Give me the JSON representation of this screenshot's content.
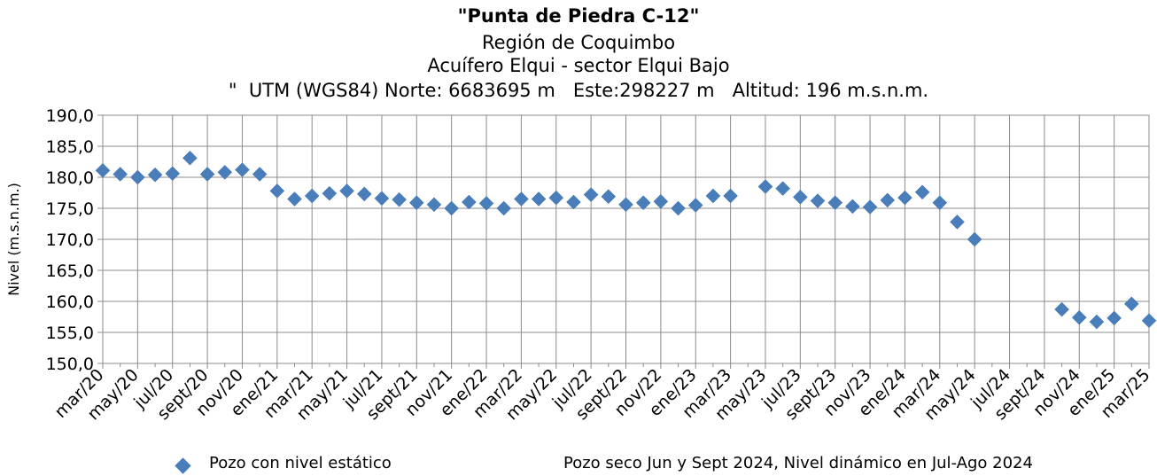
{
  "titles": {
    "line1": "\"Punta de Piedra C-12\"",
    "line2": "Región de Coquimbo",
    "line3": "Acuífero Elqui - sector Elqui Bajo",
    "line4": "\"  UTM (WGS84) Norte: 6683695 m   Este:298227 m   Altitud: 196 m.s.n.m."
  },
  "legend": {
    "label": "Pozo con nivel estático",
    "marker_color": "#4a7ebb"
  },
  "note": "Pozo seco Jun y Sept 2024, Nivel dinámico en Jul-Ago 2024",
  "chart_data": {
    "type": "scatter",
    "ylabel": "Nivel (m.s.n.m.)",
    "ylim": [
      150,
      190
    ],
    "yticks": [
      "150,0",
      "155,0",
      "160,0",
      "165,0",
      "170,0",
      "175,0",
      "180,0",
      "185,0",
      "190,0"
    ],
    "xticks": [
      "mar/20",
      "may/20",
      "jul/20",
      "sept/20",
      "nov/20",
      "ene/21",
      "mar/21",
      "may/21",
      "jul/21",
      "sept/21",
      "nov/21",
      "ene/22",
      "mar/22",
      "may/22",
      "jul/22",
      "sept/22",
      "nov/22",
      "ene/23",
      "mar/23",
      "may/23",
      "jul/23",
      "sept/23",
      "nov/23",
      "ene/24",
      "mar/24",
      "may/24",
      "jul/24",
      "sept/24",
      "nov/24",
      "ene/25",
      "mar/25"
    ],
    "x_range": [
      "2020-03",
      "2025-03"
    ],
    "grid": true,
    "color": "#4a7ebb",
    "series": [
      {
        "name": "Pozo con nivel estático",
        "points": [
          [
            "2020-03",
            181.1
          ],
          [
            "2020-04",
            180.5
          ],
          [
            "2020-05",
            180.0
          ],
          [
            "2020-06",
            180.4
          ],
          [
            "2020-07",
            180.6
          ],
          [
            "2020-08",
            183.1
          ],
          [
            "2020-09",
            180.5
          ],
          [
            "2020-10",
            180.8
          ],
          [
            "2020-11",
            181.2
          ],
          [
            "2020-12",
            180.5
          ],
          [
            "2021-01",
            177.8
          ],
          [
            "2021-02",
            176.5
          ],
          [
            "2021-03",
            177.0
          ],
          [
            "2021-04",
            177.4
          ],
          [
            "2021-05",
            177.8
          ],
          [
            "2021-06",
            177.3
          ],
          [
            "2021-07",
            176.6
          ],
          [
            "2021-08",
            176.4
          ],
          [
            "2021-09",
            175.9
          ],
          [
            "2021-10",
            175.6
          ],
          [
            "2021-11",
            175.0
          ],
          [
            "2021-12",
            176.0
          ],
          [
            "2022-01",
            175.8
          ],
          [
            "2022-02",
            175.0
          ],
          [
            "2022-03",
            176.5
          ],
          [
            "2022-04",
            176.5
          ],
          [
            "2022-05",
            176.7
          ],
          [
            "2022-06",
            176.0
          ],
          [
            "2022-07",
            177.2
          ],
          [
            "2022-08",
            176.9
          ],
          [
            "2022-09",
            175.6
          ],
          [
            "2022-10",
            175.9
          ],
          [
            "2022-11",
            176.1
          ],
          [
            "2022-12",
            175.0
          ],
          [
            "2023-01",
            175.5
          ],
          [
            "2023-02",
            177.0
          ],
          [
            "2023-03",
            177.0
          ],
          [
            "2023-05",
            178.5
          ],
          [
            "2023-06",
            178.2
          ],
          [
            "2023-07",
            176.8
          ],
          [
            "2023-08",
            176.2
          ],
          [
            "2023-09",
            175.9
          ],
          [
            "2023-10",
            175.3
          ],
          [
            "2023-11",
            175.2
          ],
          [
            "2023-12",
            176.3
          ],
          [
            "2024-01",
            176.7
          ],
          [
            "2024-02",
            177.6
          ],
          [
            "2024-03",
            175.9
          ],
          [
            "2024-04",
            172.8
          ],
          [
            "2024-05",
            170.0
          ],
          [
            "2024-10",
            158.7
          ],
          [
            "2024-11",
            157.4
          ],
          [
            "2024-12",
            156.7
          ],
          [
            "2025-01",
            157.3
          ],
          [
            "2025-02",
            159.6
          ],
          [
            "2025-03",
            156.9
          ]
        ]
      }
    ]
  }
}
